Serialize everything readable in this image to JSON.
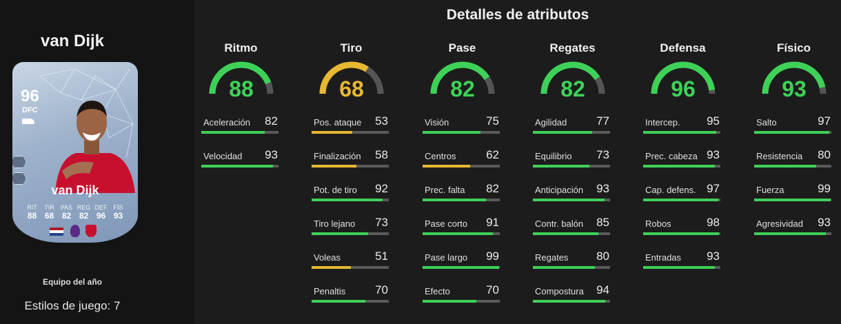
{
  "player": {
    "name": "van Dijk",
    "card_ovr": "96",
    "card_position": "DFC",
    "card_name": "van Dijk",
    "card_stats": [
      {
        "label": "RIT",
        "value": "88"
      },
      {
        "label": "TIR",
        "value": "68"
      },
      {
        "label": "PAS",
        "value": "82"
      },
      {
        "label": "REG",
        "value": "82"
      },
      {
        "label": "DEF",
        "value": "96"
      },
      {
        "label": "FÍS",
        "value": "93"
      }
    ],
    "card_subtitle": "Equipo del año",
    "playstyles": "Estilos de juego: 7"
  },
  "colors": {
    "high": "#3ed158",
    "mid": "#e6b833",
    "track": "#555555"
  },
  "title": "Detalles de atributos",
  "categories": [
    {
      "name": "Ritmo",
      "value": 88,
      "level": "high",
      "stats": [
        {
          "label": "Aceleración",
          "value": 82
        },
        {
          "label": "Velocidad",
          "value": 93
        }
      ]
    },
    {
      "name": "Tiro",
      "value": 68,
      "level": "mid",
      "stats": [
        {
          "label": "Pos. ataque",
          "value": 53
        },
        {
          "label": "Finalización",
          "value": 58
        },
        {
          "label": "Pot. de tiro",
          "value": 92
        },
        {
          "label": "Tiro lejano",
          "value": 73
        },
        {
          "label": "Voleas",
          "value": 51
        },
        {
          "label": "Penaltis",
          "value": 70
        }
      ]
    },
    {
      "name": "Pase",
      "value": 82,
      "level": "high",
      "stats": [
        {
          "label": "Visión",
          "value": 75
        },
        {
          "label": "Centros",
          "value": 62
        },
        {
          "label": "Prec. falta",
          "value": 82
        },
        {
          "label": "Pase corto",
          "value": 91
        },
        {
          "label": "Pase largo",
          "value": 99
        },
        {
          "label": "Efecto",
          "value": 70
        }
      ]
    },
    {
      "name": "Regates",
      "value": 82,
      "level": "high",
      "stats": [
        {
          "label": "Agilidad",
          "value": 77
        },
        {
          "label": "Equilibrio",
          "value": 73
        },
        {
          "label": "Anticipación",
          "value": 93
        },
        {
          "label": "Contr. balón",
          "value": 85
        },
        {
          "label": "Regates",
          "value": 80
        },
        {
          "label": "Compostura",
          "value": 94
        }
      ]
    },
    {
      "name": "Defensa",
      "value": 96,
      "level": "high",
      "stats": [
        {
          "label": "Intercep.",
          "value": 95
        },
        {
          "label": "Prec. cabeza",
          "value": 93
        },
        {
          "label": "Cap. defens.",
          "value": 97
        },
        {
          "label": "Robos",
          "value": 98
        },
        {
          "label": "Entradas",
          "value": 93
        }
      ]
    },
    {
      "name": "Físico",
      "value": 93,
      "level": "high",
      "stats": [
        {
          "label": "Salto",
          "value": 97
        },
        {
          "label": "Resistencia",
          "value": 80
        },
        {
          "label": "Fuerza",
          "value": 99
        },
        {
          "label": "Agresividad",
          "value": 93
        }
      ]
    }
  ]
}
